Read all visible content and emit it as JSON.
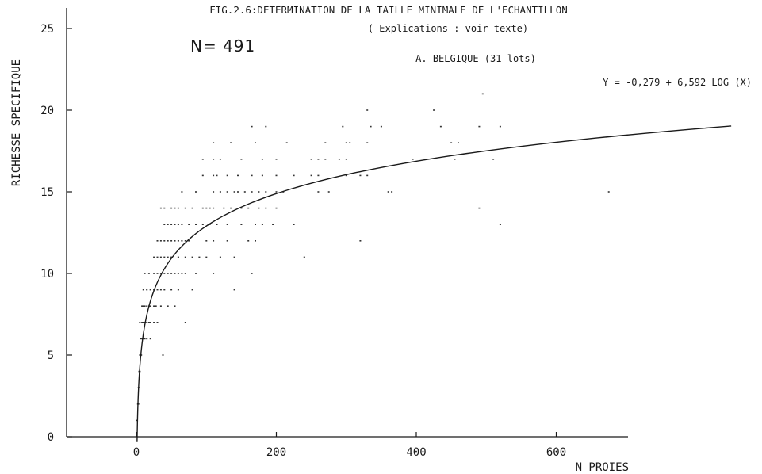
{
  "chart_data": {
    "type": "scatter",
    "title": "FIG.2.6:DETERMINATION DE LA TAILLE MINIMALE DE L'ECHANTILLON",
    "subtitle": "( Explications : voir texte)",
    "annotation_n": "N= 491",
    "annotation_region": "A. BELGIQUE (31 lots)",
    "annotation_equation": "Y = -0,279 + 6,592 LOG (X)",
    "xlabel": "N PROIES",
    "ylabel": "RICHESSE SPECIFIQUE",
    "xlim": [
      -100,
      710
    ],
    "ylim": [
      0,
      26
    ],
    "x_ticks": [
      0,
      200,
      400,
      600
    ],
    "y_ticks": [
      0,
      5,
      10,
      15,
      20,
      25
    ],
    "x_tick_labels": [
      "0",
      "200",
      "400",
      "600"
    ],
    "y_tick_labels": [
      "0",
      "5",
      "10",
      "15",
      "20",
      "25"
    ],
    "grid": false,
    "fit": {
      "intercept": -0.279,
      "slope": 6.592,
      "x_range": [
        1,
        850
      ]
    },
    "points": [
      [
        1,
        1
      ],
      [
        2,
        2
      ],
      [
        3,
        2
      ],
      [
        3,
        3
      ],
      [
        4,
        3
      ],
      [
        4,
        4
      ],
      [
        5,
        4
      ],
      [
        5,
        5
      ],
      [
        6,
        5
      ],
      [
        7,
        5
      ],
      [
        8,
        6
      ],
      [
        6,
        6
      ],
      [
        10,
        6
      ],
      [
        12,
        6
      ],
      [
        15,
        6
      ],
      [
        20,
        6
      ],
      [
        38,
        5
      ],
      [
        5,
        7
      ],
      [
        8,
        7
      ],
      [
        10,
        7
      ],
      [
        12,
        7
      ],
      [
        15,
        7
      ],
      [
        18,
        7
      ],
      [
        20,
        7
      ],
      [
        25,
        7
      ],
      [
        30,
        7
      ],
      [
        70,
        7
      ],
      [
        8,
        8
      ],
      [
        10,
        8
      ],
      [
        12,
        8
      ],
      [
        15,
        8
      ],
      [
        18,
        8
      ],
      [
        20,
        8
      ],
      [
        25,
        8
      ],
      [
        28,
        8
      ],
      [
        35,
        8
      ],
      [
        45,
        8
      ],
      [
        55,
        8
      ],
      [
        10,
        9
      ],
      [
        15,
        9
      ],
      [
        20,
        9
      ],
      [
        25,
        9
      ],
      [
        30,
        9
      ],
      [
        35,
        9
      ],
      [
        40,
        9
      ],
      [
        50,
        9
      ],
      [
        60,
        9
      ],
      [
        80,
        9
      ],
      [
        140,
        9
      ],
      [
        12,
        10
      ],
      [
        18,
        10
      ],
      [
        25,
        10
      ],
      [
        30,
        10
      ],
      [
        35,
        10
      ],
      [
        40,
        10
      ],
      [
        45,
        10
      ],
      [
        50,
        10
      ],
      [
        55,
        10
      ],
      [
        60,
        10
      ],
      [
        65,
        10
      ],
      [
        70,
        10
      ],
      [
        85,
        10
      ],
      [
        110,
        10
      ],
      [
        165,
        10
      ],
      [
        25,
        11
      ],
      [
        30,
        11
      ],
      [
        35,
        11
      ],
      [
        40,
        11
      ],
      [
        45,
        11
      ],
      [
        50,
        11
      ],
      [
        60,
        11
      ],
      [
        70,
        11
      ],
      [
        80,
        11
      ],
      [
        90,
        11
      ],
      [
        100,
        11
      ],
      [
        120,
        11
      ],
      [
        140,
        11
      ],
      [
        240,
        11
      ],
      [
        30,
        12
      ],
      [
        35,
        12
      ],
      [
        40,
        12
      ],
      [
        45,
        12
      ],
      [
        50,
        12
      ],
      [
        55,
        12
      ],
      [
        60,
        12
      ],
      [
        65,
        12
      ],
      [
        70,
        12
      ],
      [
        75,
        12
      ],
      [
        100,
        12
      ],
      [
        110,
        12
      ],
      [
        130,
        12
      ],
      [
        160,
        12
      ],
      [
        170,
        12
      ],
      [
        320,
        12
      ],
      [
        40,
        13
      ],
      [
        45,
        13
      ],
      [
        50,
        13
      ],
      [
        55,
        13
      ],
      [
        60,
        13
      ],
      [
        65,
        13
      ],
      [
        75,
        13
      ],
      [
        85,
        13
      ],
      [
        95,
        13
      ],
      [
        105,
        13
      ],
      [
        115,
        13
      ],
      [
        130,
        13
      ],
      [
        150,
        13
      ],
      [
        170,
        13
      ],
      [
        180,
        13
      ],
      [
        195,
        13
      ],
      [
        225,
        13
      ],
      [
        520,
        13
      ],
      [
        35,
        14
      ],
      [
        40,
        14
      ],
      [
        50,
        14
      ],
      [
        55,
        14
      ],
      [
        60,
        14
      ],
      [
        70,
        14
      ],
      [
        80,
        14
      ],
      [
        95,
        14
      ],
      [
        100,
        14
      ],
      [
        105,
        14
      ],
      [
        110,
        14
      ],
      [
        125,
        14
      ],
      [
        135,
        14
      ],
      [
        150,
        14
      ],
      [
        160,
        14
      ],
      [
        175,
        14
      ],
      [
        185,
        14
      ],
      [
        200,
        14
      ],
      [
        490,
        14
      ],
      [
        65,
        15
      ],
      [
        85,
        15
      ],
      [
        110,
        15
      ],
      [
        120,
        15
      ],
      [
        130,
        15
      ],
      [
        140,
        15
      ],
      [
        145,
        15
      ],
      [
        155,
        15
      ],
      [
        165,
        15
      ],
      [
        175,
        15
      ],
      [
        185,
        15
      ],
      [
        200,
        15
      ],
      [
        210,
        15
      ],
      [
        260,
        15
      ],
      [
        275,
        15
      ],
      [
        360,
        15
      ],
      [
        365,
        15
      ],
      [
        675,
        15
      ],
      [
        95,
        16
      ],
      [
        110,
        16
      ],
      [
        115,
        16
      ],
      [
        130,
        16
      ],
      [
        145,
        16
      ],
      [
        165,
        16
      ],
      [
        180,
        16
      ],
      [
        200,
        16
      ],
      [
        225,
        16
      ],
      [
        250,
        16
      ],
      [
        260,
        16
      ],
      [
        300,
        16
      ],
      [
        320,
        16
      ],
      [
        330,
        16
      ],
      [
        95,
        17
      ],
      [
        110,
        17
      ],
      [
        120,
        17
      ],
      [
        150,
        17
      ],
      [
        180,
        17
      ],
      [
        200,
        17
      ],
      [
        250,
        17
      ],
      [
        260,
        17
      ],
      [
        270,
        17
      ],
      [
        290,
        17
      ],
      [
        300,
        17
      ],
      [
        395,
        17
      ],
      [
        455,
        17
      ],
      [
        510,
        17
      ],
      [
        110,
        18
      ],
      [
        135,
        18
      ],
      [
        170,
        18
      ],
      [
        215,
        18
      ],
      [
        270,
        18
      ],
      [
        300,
        18
      ],
      [
        305,
        18
      ],
      [
        330,
        18
      ],
      [
        450,
        18
      ],
      [
        460,
        18
      ],
      [
        165,
        19
      ],
      [
        185,
        19
      ],
      [
        295,
        19
      ],
      [
        335,
        19
      ],
      [
        350,
        19
      ],
      [
        435,
        19
      ],
      [
        490,
        19
      ],
      [
        520,
        19
      ],
      [
        330,
        20
      ],
      [
        425,
        20
      ],
      [
        495,
        21
      ]
    ]
  }
}
